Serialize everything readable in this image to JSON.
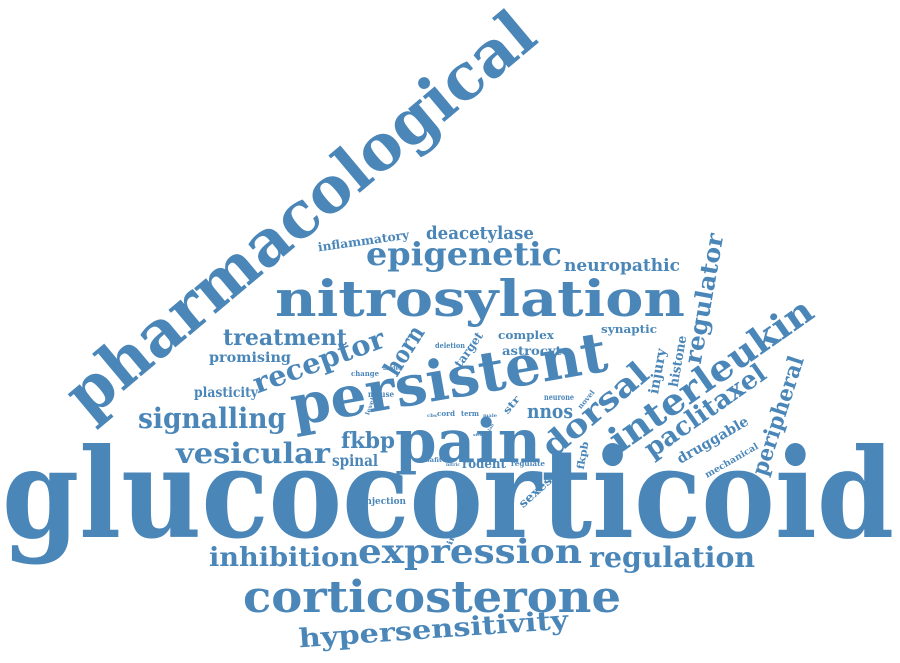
{
  "color": "#4a86b8",
  "words": [
    {
      "text": "glucocorticoid"
    },
    {
      "text": "pharmacological"
    },
    {
      "text": "nitrosylation"
    },
    {
      "text": "persistent"
    },
    {
      "text": "pain"
    },
    {
      "text": "corticosterone"
    },
    {
      "text": "expression"
    },
    {
      "text": "regulation"
    },
    {
      "text": "inhibition"
    },
    {
      "text": "hypersensitivity"
    },
    {
      "text": "epigenetic"
    },
    {
      "text": "interleukin"
    },
    {
      "text": "receptor"
    },
    {
      "text": "dorsal"
    },
    {
      "text": "signalling"
    },
    {
      "text": "vesicular"
    },
    {
      "text": "paclitaxel"
    },
    {
      "text": "peripheral"
    },
    {
      "text": "regulator"
    },
    {
      "text": "treatment"
    },
    {
      "text": "deacetylase"
    },
    {
      "text": "neuropathic"
    },
    {
      "text": "fkbp"
    },
    {
      "text": "horn"
    },
    {
      "text": "nnos"
    },
    {
      "text": "spinal"
    },
    {
      "text": "druggable"
    },
    {
      "text": "promising"
    },
    {
      "text": "plasticity"
    },
    {
      "text": "inflammatory"
    },
    {
      "text": "injury"
    },
    {
      "text": "histone"
    },
    {
      "text": "astrocyte"
    },
    {
      "text": "complex"
    },
    {
      "text": "synaptic"
    },
    {
      "text": "target"
    },
    {
      "text": "mechanical"
    },
    {
      "text": "rodent"
    },
    {
      "text": "sexes"
    },
    {
      "text": "increase"
    },
    {
      "text": "injection"
    },
    {
      "text": "fkpb"
    },
    {
      "text": "str"
    },
    {
      "text": "mouse"
    },
    {
      "text": "neurone"
    },
    {
      "text": "novel"
    },
    {
      "text": "deletion"
    },
    {
      "text": "model"
    },
    {
      "text": "change"
    },
    {
      "text": "level"
    },
    {
      "text": "cord"
    },
    {
      "text": "term"
    },
    {
      "text": "male"
    },
    {
      "text": "safit"
    },
    {
      "text": "nitric"
    },
    {
      "text": "regulate"
    },
    {
      "text": "cbs"
    },
    {
      "text": "lab"
    },
    {
      "text": "sick"
    }
  ]
}
